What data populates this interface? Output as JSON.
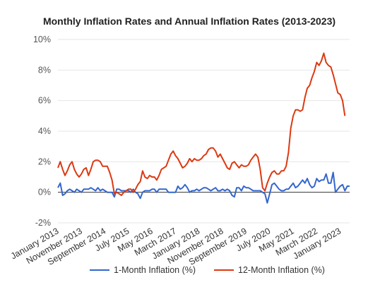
{
  "chart_data": {
    "type": "line",
    "title": "Monthly Inflation Rates and Annual Inflation Rates (2013-2023)",
    "xlabel": "",
    "ylabel": "",
    "ylim": [
      -2,
      10
    ],
    "yticks": [
      "-2%",
      "0%",
      "2%",
      "4%",
      "6%",
      "8%",
      "10%"
    ],
    "yticks_values": [
      -2,
      0,
      2,
      4,
      6,
      8,
      10
    ],
    "xtick_labels": [
      "January 2013",
      "November 2013",
      "September 2014",
      "July 2015",
      "May 2016",
      "March 2017",
      "January 2018",
      "November 2018",
      "September 2019",
      "July 2020",
      "May 2021",
      "March 2022",
      "January 2023"
    ],
    "xtick_indices": [
      0,
      10,
      20,
      30,
      40,
      50,
      60,
      70,
      80,
      90,
      100,
      110,
      120
    ],
    "grid": true,
    "legend_position": "bottom",
    "series": [
      {
        "name": "1-Month Inflation (%)",
        "color": "#3366cc",
        "values": [
          0.3,
          0.6,
          -0.2,
          -0.1,
          0.1,
          0.2,
          0.1,
          0.0,
          0.2,
          0.1,
          0.0,
          0.2,
          0.2,
          0.2,
          0.3,
          0.2,
          0.1,
          0.3,
          0.1,
          0.2,
          0.1,
          0.0,
          0.0,
          0.0,
          -0.3,
          0.2,
          0.2,
          0.1,
          0.1,
          0.1,
          0.1,
          0.0,
          0.2,
          0.0,
          -0.1,
          -0.4,
          0.0,
          0.1,
          0.1,
          0.1,
          0.2,
          0.2,
          0.0,
          0.2,
          0.2,
          0.2,
          0.2,
          0.0,
          0.0,
          0.0,
          0.0,
          0.4,
          0.2,
          0.3,
          0.5,
          0.3,
          0.0,
          0.1,
          0.1,
          0.2,
          0.1,
          0.2,
          0.3,
          0.3,
          0.2,
          0.1,
          0.2,
          0.3,
          0.1,
          0.1,
          0.2,
          0.1,
          0.2,
          0.1,
          -0.2,
          -0.3,
          0.3,
          0.3,
          0.1,
          0.4,
          0.3,
          0.3,
          0.2,
          0.1,
          0.1,
          0.1,
          0.1,
          0.0,
          -0.1,
          -0.7,
          -0.1,
          0.5,
          0.6,
          0.4,
          0.2,
          0.1,
          0.1,
          0.2,
          0.2,
          0.4,
          0.6,
          0.3,
          0.4,
          0.6,
          0.8,
          0.6,
          0.9,
          0.5,
          0.3,
          0.4,
          0.9,
          0.7,
          0.8,
          0.8,
          1.2,
          0.6,
          0.6,
          1.3,
          0.0,
          0.2,
          0.4,
          0.5,
          0.1,
          0.4,
          0.4
        ],
        "line_width": 2
      },
      {
        "name": "12-Month Inflation (%)",
        "color": "#dc3912",
        "values": [
          1.6,
          2.0,
          1.5,
          1.1,
          1.4,
          1.8,
          2.0,
          1.5,
          1.2,
          1.0,
          1.2,
          1.5,
          1.6,
          1.1,
          1.5,
          2.0,
          2.1,
          2.1,
          2.0,
          1.7,
          1.7,
          1.7,
          1.3,
          0.8,
          -0.1,
          0.0,
          -0.1,
          -0.2,
          0.0,
          0.1,
          0.2,
          0.2,
          0.0,
          0.2,
          0.5,
          0.7,
          1.4,
          1.0,
          0.9,
          1.1,
          1.0,
          1.0,
          0.8,
          1.1,
          1.5,
          1.6,
          1.7,
          2.1,
          2.5,
          2.7,
          2.4,
          2.2,
          1.9,
          1.6,
          1.7,
          1.9,
          2.2,
          2.0,
          2.2,
          2.1,
          2.1,
          2.2,
          2.4,
          2.5,
          2.8,
          2.9,
          2.9,
          2.7,
          2.3,
          2.5,
          2.2,
          1.9,
          1.6,
          1.5,
          1.9,
          2.0,
          1.8,
          1.6,
          1.8,
          1.7,
          1.7,
          1.8,
          2.1,
          2.3,
          2.5,
          2.3,
          1.5,
          0.3,
          0.1,
          0.6,
          1.0,
          1.3,
          1.4,
          1.2,
          1.2,
          1.4,
          1.4,
          1.7,
          2.6,
          4.2,
          5.0,
          5.4,
          5.4,
          5.3,
          5.4,
          6.2,
          6.8,
          7.0,
          7.5,
          7.9,
          8.5,
          8.3,
          8.6,
          9.1,
          8.5,
          8.3,
          8.2,
          7.7,
          7.1,
          6.5,
          6.4,
          6.0,
          5.0
        ],
        "line_width": 2
      }
    ]
  }
}
